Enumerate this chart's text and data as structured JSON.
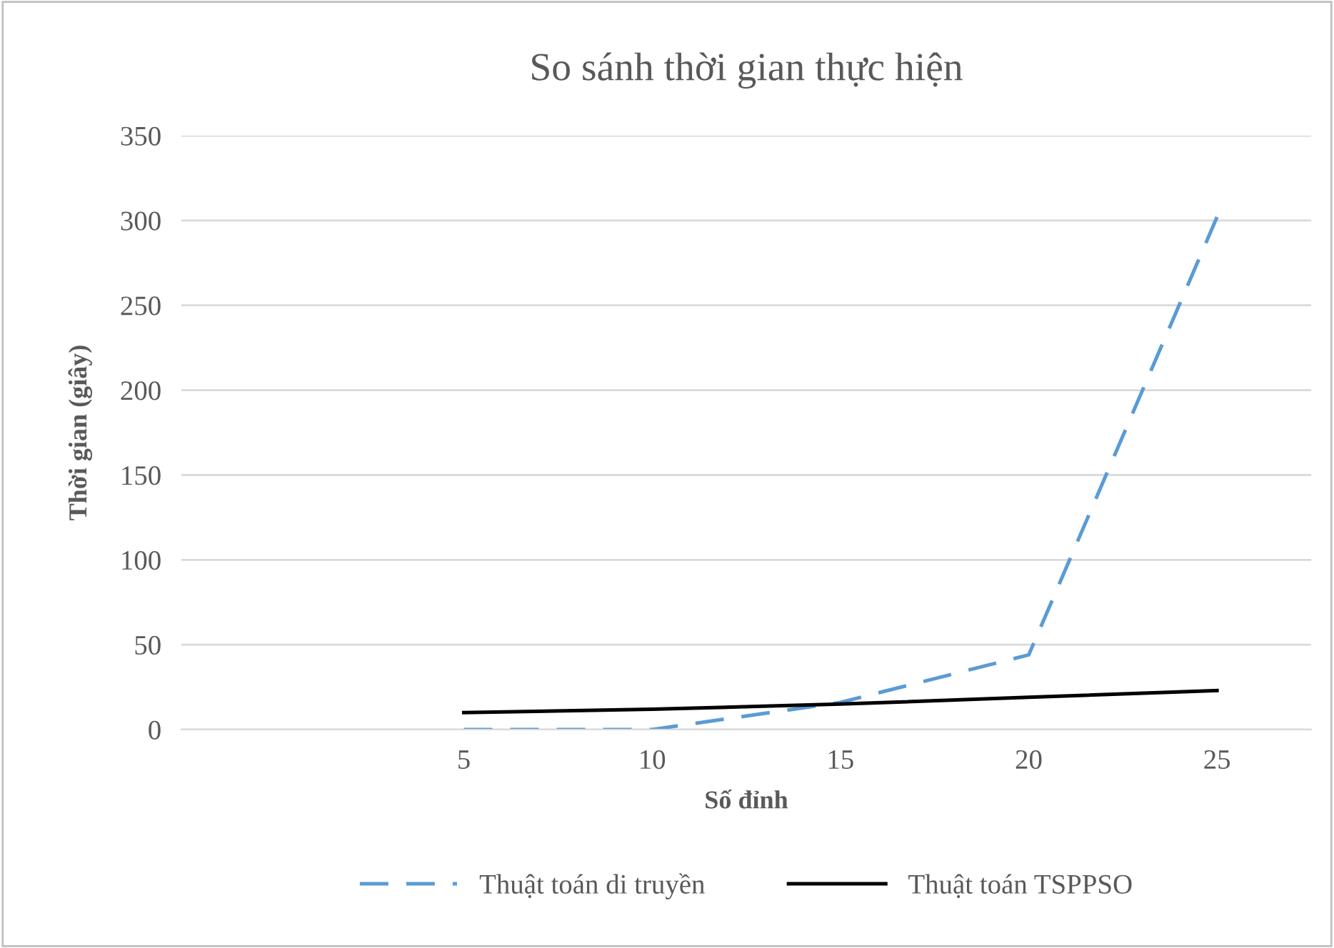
{
  "chart_data": {
    "type": "line",
    "title": "So sánh thời gian thực hiện",
    "xlabel": "Số đỉnh",
    "ylabel": "Thời gian (giây)",
    "categories": [
      null,
      "5",
      "10",
      "15",
      "20",
      "25"
    ],
    "series": [
      {
        "name": "Thuật toán di truyền",
        "color": "#5b9bd5",
        "line_style": "dashed",
        "values": [
          null,
          0,
          0,
          16,
          44,
          302
        ]
      },
      {
        "name": "Thuật toán TSPPSO",
        "color": "#000000",
        "line_style": "solid",
        "values": [
          null,
          10,
          12,
          15,
          19,
          23
        ]
      }
    ],
    "ylim": [
      0,
      350
    ],
    "yticks": [
      0,
      50,
      100,
      150,
      200,
      250,
      300,
      350
    ],
    "grid": "y",
    "legend": "bottom",
    "marker": "none"
  }
}
